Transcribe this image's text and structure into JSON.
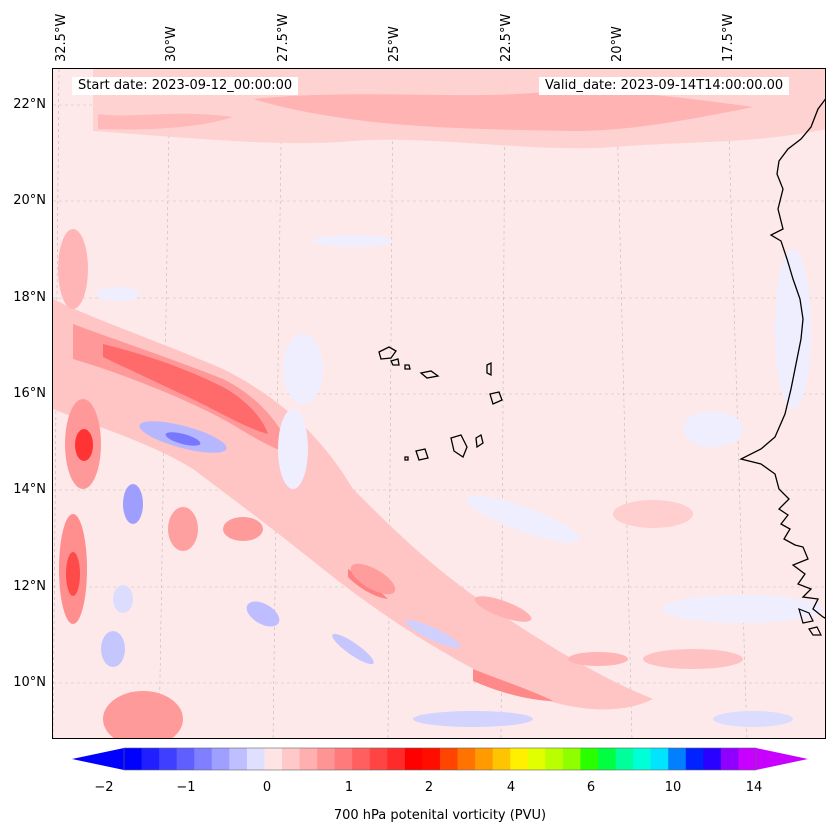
{
  "header": {
    "start_date": "Start date: 2023-09-12_00:00:00",
    "valid_date": "Valid_date: 2023-09-14T14:00:00.00"
  },
  "axes": {
    "lon_ticks": [
      "32.5°W",
      "30°W",
      "27.5°W",
      "25°W",
      "22.5°W",
      "20°W",
      "17.5°W"
    ],
    "lat_ticks": [
      "22°N",
      "20°N",
      "18°N",
      "16°N",
      "14°N",
      "12°N",
      "10°N"
    ]
  },
  "colorbar": {
    "title": "700 hPa potenital vorticity (PVU)",
    "tick_labels": [
      "−2",
      "−1",
      "0",
      "1",
      "2",
      "4",
      "6",
      "10",
      "14"
    ],
    "colors": [
      "#0000ff",
      "#1f1fff",
      "#3f3fff",
      "#5f5fff",
      "#7f7fff",
      "#9f9fff",
      "#bfbfff",
      "#dfdfff",
      "#fee4e4",
      "#ffc9c9",
      "#ffafaf",
      "#ff9494",
      "#ff7a7a",
      "#ff5f5f",
      "#ff4444",
      "#ff2a2a",
      "#ff0000",
      "#ff0e00",
      "#ff4500",
      "#ff7300",
      "#ff9a00",
      "#ffc400",
      "#fff000",
      "#e2ff00",
      "#b9ff00",
      "#8fff00",
      "#2aff00",
      "#00ff40",
      "#00ff9a",
      "#00ffd6",
      "#00e4ff",
      "#0080ff",
      "#0022ff",
      "#2a00ff",
      "#9000ff",
      "#c800ff"
    ],
    "under_color": "#0000ff",
    "over_color": "#c800ff"
  },
  "colors": {
    "background_field": "#fee9ea",
    "coastline": "#000000",
    "gridline": "#bbbbbb"
  }
}
